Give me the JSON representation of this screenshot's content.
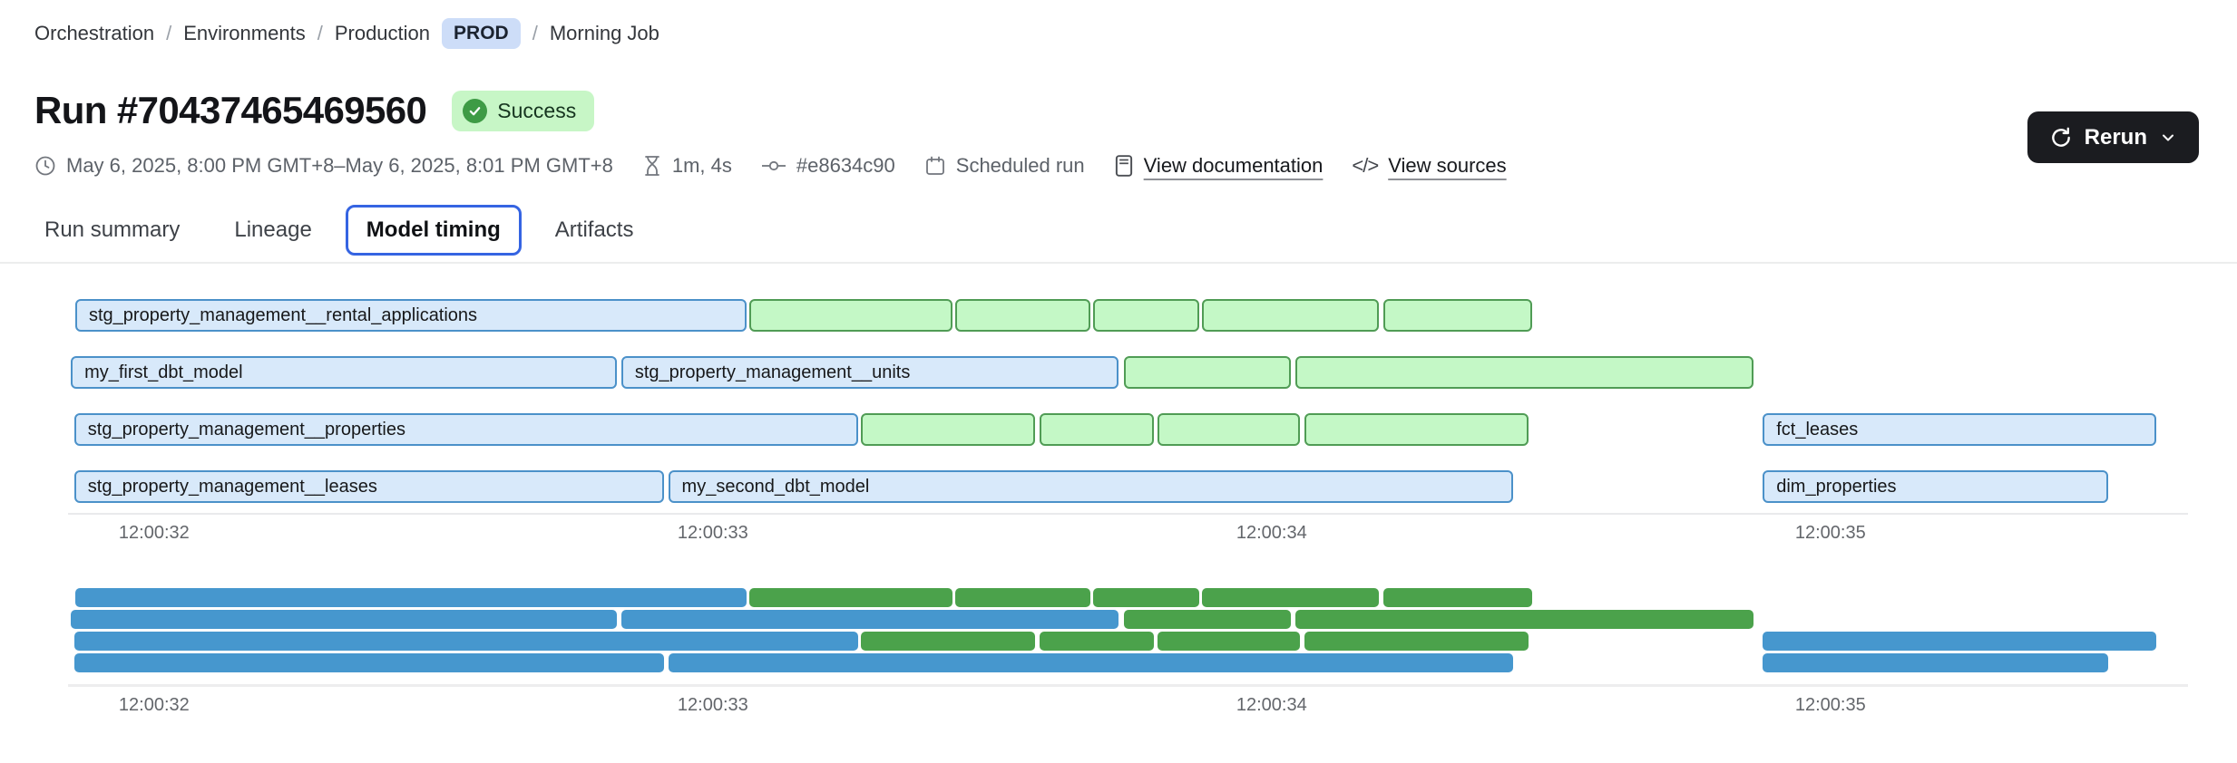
{
  "breadcrumb": {
    "separator": "/",
    "items": [
      "Orchestration",
      "Environments",
      "Production"
    ],
    "env_badge": "PROD",
    "current": "Morning Job"
  },
  "header": {
    "title": "Run #70437465469560",
    "status": "Success",
    "rerun_label": "Rerun"
  },
  "meta": {
    "date_range": "May 6, 2025, 8:00 PM GMT+8–May 6, 2025, 8:01 PM GMT+8",
    "duration": "1m, 4s",
    "commit": "#e8634c90",
    "trigger": "Scheduled run",
    "doc_link": "View documentation",
    "sources_link": "View sources"
  },
  "icons": {
    "code_glyph": "</>"
  },
  "tabs": [
    {
      "label": "Run summary",
      "active": false
    },
    {
      "label": "Lineage",
      "active": false
    },
    {
      "label": "Model timing",
      "active": true
    },
    {
      "label": "Artifacts",
      "active": false
    }
  ],
  "colors": {
    "model_bar_fill": "#d8e9fa",
    "model_bar_border": "#4b91c9",
    "segment_bar_fill": "#c4f8c6",
    "segment_bar_border": "#509c55",
    "minimap_blue": "#4697ce",
    "minimap_green": "#4ba24b",
    "active_tab_border": "#3564e2",
    "success_badge_bg": "#c7f6c6",
    "success_check": "#3e9b45",
    "prod_badge_bg": "#cdddf8",
    "rerun_bg": "#1b1c20"
  },
  "chart_data": {
    "type": "gantt",
    "time_unit": "seconds after 12:00:00",
    "domain": [
      31.846,
      35.64
    ],
    "ticks": [
      {
        "t": 32,
        "label": "12:00:32"
      },
      {
        "t": 33,
        "label": "12:00:33"
      },
      {
        "t": 34,
        "label": "12:00:34"
      },
      {
        "t": 35,
        "label": "12:00:35"
      }
    ],
    "rows": [
      {
        "bars": [
          {
            "name": "stg_property_management__rental_applications",
            "variant": "blue",
            "start": 31.859,
            "end": 33.06
          },
          {
            "variant": "green",
            "start": 33.065,
            "end": 33.429
          },
          {
            "variant": "green",
            "start": 33.433,
            "end": 33.675
          },
          {
            "variant": "green",
            "start": 33.68,
            "end": 33.87
          },
          {
            "variant": "green",
            "start": 33.875,
            "end": 34.192
          },
          {
            "variant": "green",
            "start": 34.2,
            "end": 34.466
          }
        ]
      },
      {
        "bars": [
          {
            "name": "my_first_dbt_model",
            "variant": "blue",
            "start": 31.851,
            "end": 32.828
          },
          {
            "name": "stg_property_management__units",
            "variant": "blue",
            "start": 32.836,
            "end": 33.726
          },
          {
            "variant": "green",
            "start": 33.735,
            "end": 34.034
          },
          {
            "variant": "green",
            "start": 34.042,
            "end": 34.862
          }
        ]
      },
      {
        "bars": [
          {
            "name": "stg_property_management__properties",
            "variant": "blue",
            "start": 31.857,
            "end": 33.26
          },
          {
            "variant": "green",
            "start": 33.265,
            "end": 33.576
          },
          {
            "variant": "green",
            "start": 33.584,
            "end": 33.789
          },
          {
            "variant": "green",
            "start": 33.795,
            "end": 34.05
          },
          {
            "variant": "green",
            "start": 34.058,
            "end": 34.46
          },
          {
            "name": "fct_leases",
            "variant": "blue",
            "start": 34.879,
            "end": 35.584
          }
        ]
      },
      {
        "bars": [
          {
            "name": "stg_property_management__leases",
            "variant": "blue",
            "start": 31.857,
            "end": 32.912
          },
          {
            "name": "my_second_dbt_model",
            "variant": "blue",
            "start": 32.92,
            "end": 34.432
          },
          {
            "name": "dim_properties",
            "variant": "blue",
            "start": 34.879,
            "end": 35.497
          }
        ]
      }
    ]
  }
}
